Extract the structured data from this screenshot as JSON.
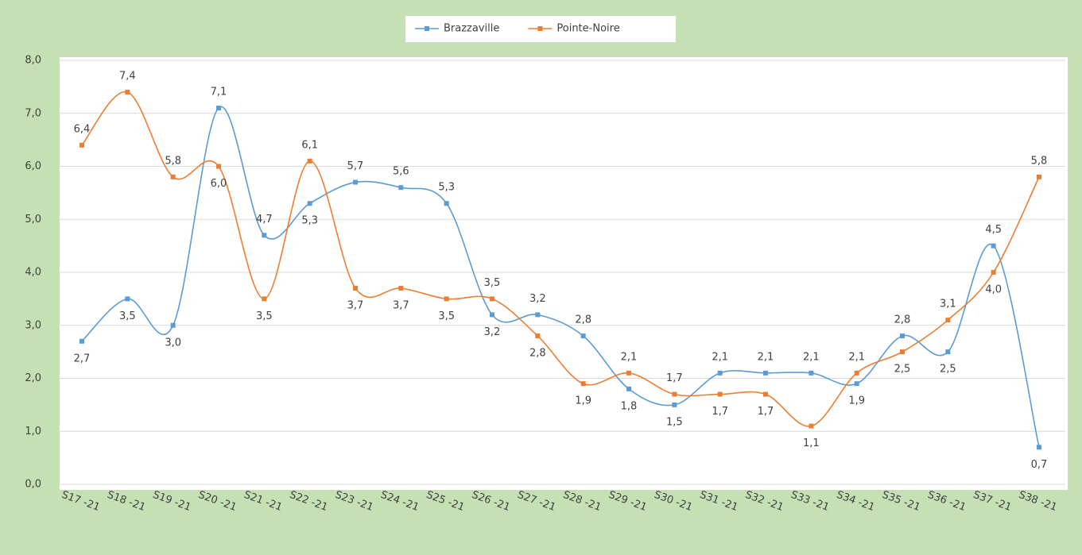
{
  "chart_data": {
    "type": "line",
    "categories": [
      "S17 -21",
      "S18 -21",
      "S19 -21",
      "S20 -21",
      "S21 -21",
      "S22 -21",
      "S23 -21",
      "S24 -21",
      "S25 -21",
      "S26 -21",
      "S27 -21",
      "S28 -21",
      "S29 -21",
      "S30 -21",
      "S31 -21",
      "S32 -21",
      "S33 -21",
      "S34 -21",
      "S35 -21",
      "S36 -21",
      "S37 -21",
      "S38 -21"
    ],
    "series": [
      {
        "name": "Brazzaville",
        "color": "#5b9bd5",
        "values": [
          2.7,
          3.5,
          3.0,
          7.1,
          4.7,
          5.3,
          5.7,
          5.6,
          5.3,
          3.2,
          3.2,
          2.8,
          1.8,
          1.5,
          2.1,
          2.1,
          2.1,
          1.9,
          2.8,
          2.5,
          4.5,
          0.7
        ],
        "value_labels": [
          "2,7",
          "3,5",
          "3,0",
          "7,1",
          "4,7",
          "5,3",
          "5,7",
          "5,6",
          "5,3",
          "3,2",
          "3,2",
          "2,8",
          "1,8",
          "1,5",
          "2,1",
          "2,1",
          "2,1",
          "1,9",
          "2,8",
          "2,5",
          "4,5",
          "0,7"
        ]
      },
      {
        "name": "Pointe-Noire",
        "color": "#ed7d31",
        "values": [
          6.4,
          7.4,
          5.8,
          6.0,
          3.5,
          6.1,
          3.7,
          3.7,
          3.5,
          3.5,
          2.8,
          1.9,
          2.1,
          1.7,
          1.7,
          1.7,
          1.1,
          2.1,
          2.5,
          3.1,
          4.0,
          5.8
        ],
        "value_labels": [
          "6,4",
          "7,4",
          "5,8",
          "6,0",
          "3,5",
          "6,1",
          "3,7",
          "3,7",
          "3,5",
          "3,5",
          "2,8",
          "1,9",
          "2,1",
          "1,7",
          "1,7",
          "1,7",
          "1,1",
          "2,1",
          "2,5",
          "3,1",
          "4,0",
          "5,8"
        ]
      }
    ],
    "ylim": [
      0,
      8
    ],
    "yticks": [
      {
        "value": 0,
        "label": "0,0"
      },
      {
        "value": 1,
        "label": "1,0"
      },
      {
        "value": 2,
        "label": "2,0"
      },
      {
        "value": 3,
        "label": "3,0"
      },
      {
        "value": 4,
        "label": "4,0"
      },
      {
        "value": 5,
        "label": "5,0"
      },
      {
        "value": 6,
        "label": "6,0"
      },
      {
        "value": 7,
        "label": "7,0"
      },
      {
        "value": 8,
        "label": "8,0"
      }
    ],
    "grid": true,
    "smooth": true,
    "legend": "top"
  }
}
